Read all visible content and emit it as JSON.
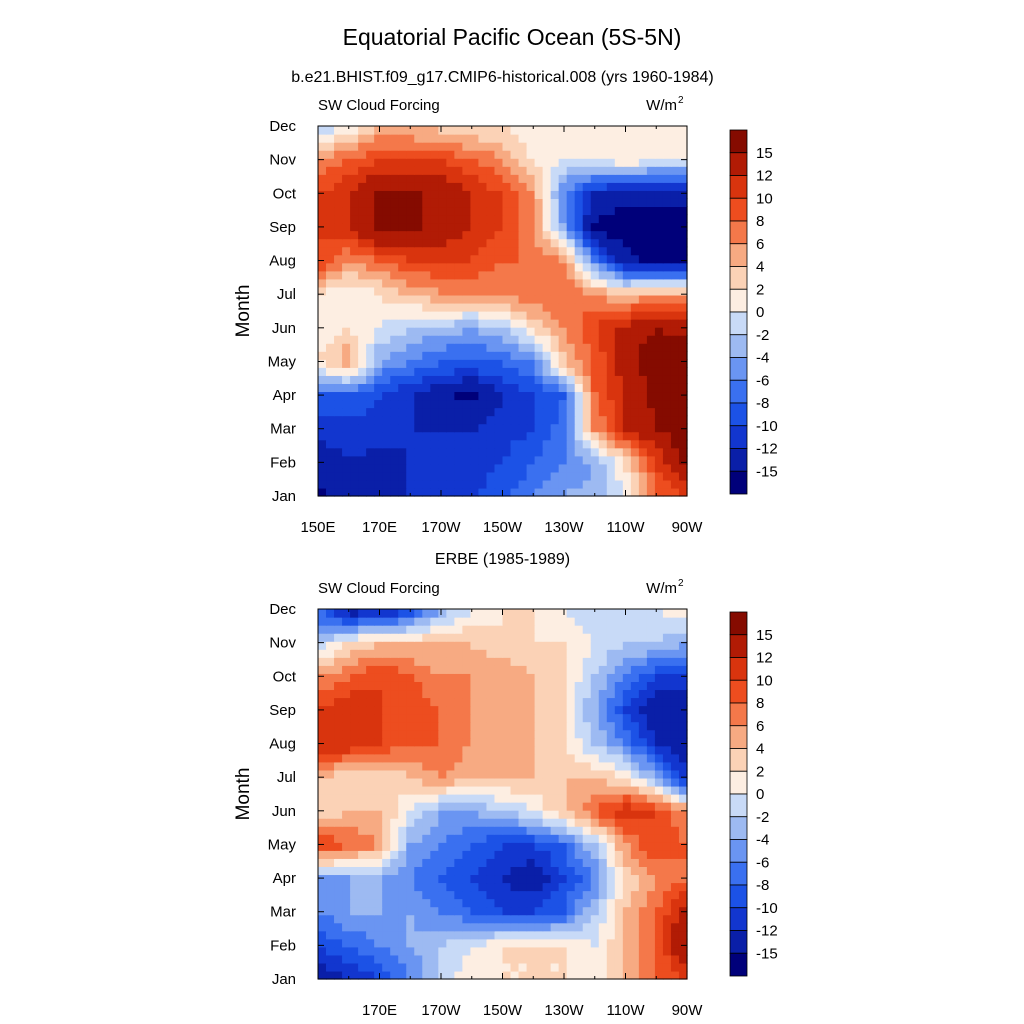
{
  "figure": {
    "title": "Equatorial Pacific Ocean (5S-5N)"
  },
  "chart_data": [
    {
      "type": "heatmap",
      "title": "b.e21.BHIST.f09_g17.CMIP6-historical.008 (yrs 1960-1984)",
      "left_label": "SW Cloud Forcing",
      "units": "W/m",
      "units_sup": "2",
      "xlabel": "",
      "ylabel": "Month",
      "x_tick_labels": [
        "150E",
        "170E",
        "170W",
        "150W",
        "130W",
        "110W",
        "90W"
      ],
      "x_range": [
        "150E",
        "90W"
      ],
      "y_tick_labels": [
        "Jan",
        "Feb",
        "Mar",
        "Apr",
        "May",
        "Jun",
        "Jul",
        "Aug",
        "Sep",
        "Oct",
        "Nov",
        "Dec"
      ],
      "x": [
        150,
        160,
        170,
        180,
        190,
        200,
        210,
        220,
        230,
        240,
        250,
        260,
        270
      ],
      "y": [
        "Jan",
        "Feb",
        "Mar",
        "Apr",
        "May",
        "Jun",
        "Jul",
        "Aug",
        "Sep",
        "Oct",
        "Nov",
        "Dec"
      ],
      "z": [
        [
          -16,
          -13,
          -13,
          -12,
          -12,
          -10,
          -9,
          -6,
          -4,
          -3,
          0,
          8,
          10
        ],
        [
          -14,
          -12,
          -13,
          -12,
          -12,
          -11,
          -10,
          -8,
          -6,
          -4,
          2,
          10,
          16
        ],
        [
          -11,
          -11,
          -11,
          -12,
          -12,
          -12,
          -11,
          -10,
          -7,
          6,
          12,
          15,
          17
        ],
        [
          -8,
          -8,
          -10,
          -12,
          -14,
          -16,
          -12,
          -10,
          -8,
          8,
          12,
          16,
          17
        ],
        [
          2,
          6,
          -4,
          -6,
          -8,
          -8,
          -8,
          -6,
          4,
          8,
          14,
          17,
          17
        ],
        [
          0,
          2,
          0,
          -2,
          -3,
          -4,
          -2,
          2,
          6,
          10,
          13,
          15,
          14
        ],
        [
          2,
          0,
          2,
          4,
          6,
          6,
          6,
          8,
          8,
          6,
          4,
          6,
          6
        ],
        [
          10,
          6,
          8,
          10,
          10,
          10,
          8,
          8,
          6,
          -6,
          -14,
          -16,
          -16
        ],
        [
          10,
          12,
          16,
          16,
          14,
          12,
          10,
          6,
          -4,
          -16,
          -17,
          -17,
          -17
        ],
        [
          10,
          12,
          16,
          16,
          14,
          12,
          10,
          6,
          -6,
          -12,
          -14,
          -14,
          -14
        ],
        [
          6,
          8,
          10,
          10,
          10,
          8,
          6,
          2,
          0,
          0,
          2,
          0,
          0
        ],
        [
          -2,
          0,
          4,
          4,
          3,
          2,
          2,
          0,
          0,
          2,
          2,
          2,
          2
        ]
      ],
      "colorbar": {
        "labels": [
          "15",
          "12",
          "10",
          "8",
          "6",
          "4",
          "2",
          "0",
          "-2",
          "-4",
          "-6",
          "-8",
          "-10",
          "-12",
          "-15"
        ],
        "levels": [
          -15,
          -12,
          -10,
          -8,
          -6,
          -4,
          -2,
          0,
          2,
          4,
          6,
          8,
          10,
          12,
          15
        ],
        "colors": [
          "#00007a",
          "#0a1fa8",
          "#1236cf",
          "#1c52e6",
          "#3a70f0",
          "#6a95f2",
          "#9dbaf2",
          "#c8daf7",
          "#fdeee2",
          "#fbd2b6",
          "#f7aa82",
          "#f4784a",
          "#ed4d1f",
          "#d9340e",
          "#b11b05",
          "#850b00"
        ]
      }
    },
    {
      "type": "heatmap",
      "title": "ERBE (1985-1989)",
      "left_label": "SW Cloud Forcing",
      "units": "W/m",
      "units_sup": "2",
      "xlabel": "",
      "ylabel": "Month",
      "x_tick_labels": [
        "",
        "170E",
        "170W",
        "150W",
        "130W",
        "110W",
        "90W"
      ],
      "x_range": [
        "150E",
        "90W"
      ],
      "y_tick_labels": [
        "Jan",
        "Feb",
        "Mar",
        "Apr",
        "May",
        "Jun",
        "Jul",
        "Aug",
        "Sep",
        "Oct",
        "Nov",
        "Dec"
      ],
      "x": [
        150,
        160,
        170,
        180,
        190,
        200,
        210,
        220,
        230,
        240,
        250,
        260,
        270
      ],
      "y": [
        "Jan",
        "Feb",
        "Mar",
        "Apr",
        "May",
        "Jun",
        "Jul",
        "Aug",
        "Sep",
        "Oct",
        "Nov",
        "Dec"
      ],
      "z": [
        [
          -14,
          -12,
          -10,
          -6,
          -2,
          2,
          2,
          2,
          2,
          0,
          4,
          8,
          10
        ],
        [
          -10,
          -8,
          -6,
          -4,
          -2,
          0,
          2,
          2,
          2,
          0,
          4,
          8,
          16
        ],
        [
          -6,
          -4,
          -4,
          -4,
          -6,
          -8,
          -10,
          -10,
          -8,
          -2,
          4,
          8,
          14
        ],
        [
          -4,
          -4,
          -4,
          -6,
          -8,
          -10,
          -12,
          -14,
          -10,
          -6,
          2,
          6,
          8
        ],
        [
          10,
          8,
          6,
          -4,
          -6,
          -8,
          -10,
          -10,
          -8,
          -2,
          6,
          10,
          8
        ],
        [
          2,
          4,
          4,
          0,
          -4,
          -4,
          -2,
          0,
          4,
          8,
          12,
          10,
          6
        ],
        [
          4,
          2,
          2,
          4,
          6,
          4,
          4,
          4,
          4,
          4,
          2,
          -4,
          -12
        ],
        [
          12,
          12,
          10,
          8,
          8,
          6,
          4,
          4,
          2,
          -2,
          -6,
          -12,
          -14
        ],
        [
          10,
          12,
          10,
          10,
          8,
          6,
          4,
          4,
          2,
          -4,
          -10,
          -14,
          -14
        ],
        [
          6,
          8,
          10,
          8,
          6,
          6,
          6,
          4,
          2,
          -2,
          -6,
          -10,
          -10
        ],
        [
          -2,
          2,
          4,
          4,
          4,
          4,
          2,
          2,
          2,
          0,
          -2,
          -2,
          -4
        ],
        [
          -8,
          -14,
          -14,
          -10,
          -4,
          0,
          2,
          2,
          0,
          -2,
          0,
          0,
          2
        ]
      ],
      "colorbar": {
        "labels": [
          "15",
          "12",
          "10",
          "8",
          "6",
          "4",
          "2",
          "0",
          "-2",
          "-4",
          "-6",
          "-8",
          "-10",
          "-12",
          "-15"
        ],
        "levels": [
          -15,
          -12,
          -10,
          -8,
          -6,
          -4,
          -2,
          0,
          2,
          4,
          6,
          8,
          10,
          12,
          15
        ],
        "colors": [
          "#00007a",
          "#0a1fa8",
          "#1236cf",
          "#1c52e6",
          "#3a70f0",
          "#6a95f2",
          "#9dbaf2",
          "#c8daf7",
          "#fdeee2",
          "#fbd2b6",
          "#f7aa82",
          "#f4784a",
          "#ed4d1f",
          "#d9340e",
          "#b11b05",
          "#850b00"
        ]
      }
    }
  ]
}
